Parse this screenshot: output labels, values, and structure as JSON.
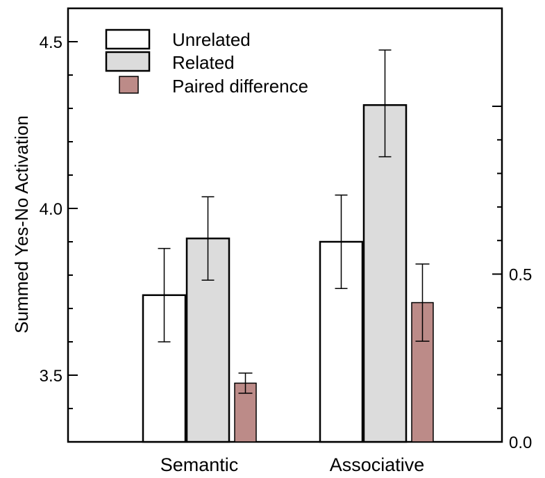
{
  "chart_data": {
    "type": "bar",
    "categories": [
      "Semantic",
      "Associative"
    ],
    "ylabel": "Summed Yes-No Activation",
    "ylim": [
      3.3,
      4.6
    ],
    "yticks": [
      "3.5",
      "4.0",
      "4.5"
    ],
    "y2lim": [
      0.0,
      1.0
    ],
    "y2ticks": [
      "0.0",
      "0.5"
    ],
    "legend_position": "top-left",
    "series": [
      {
        "name": "Unrelated",
        "axis": "left",
        "color": "#ffffff",
        "values": [
          3.74,
          3.9
        ],
        "err_low": [
          3.6,
          3.76
        ],
        "err_high": [
          3.88,
          4.04
        ]
      },
      {
        "name": "Related",
        "axis": "left",
        "color": "#dcdcdc",
        "values": [
          3.91,
          4.31
        ],
        "err_low": [
          3.785,
          4.155
        ],
        "err_high": [
          4.035,
          4.475
        ]
      },
      {
        "name": "Paired difference",
        "axis": "right",
        "color": "#bc8b88",
        "values": [
          0.175,
          0.415
        ],
        "err_low": [
          0.145,
          0.3
        ],
        "err_high": [
          0.205,
          0.53
        ]
      }
    ]
  }
}
